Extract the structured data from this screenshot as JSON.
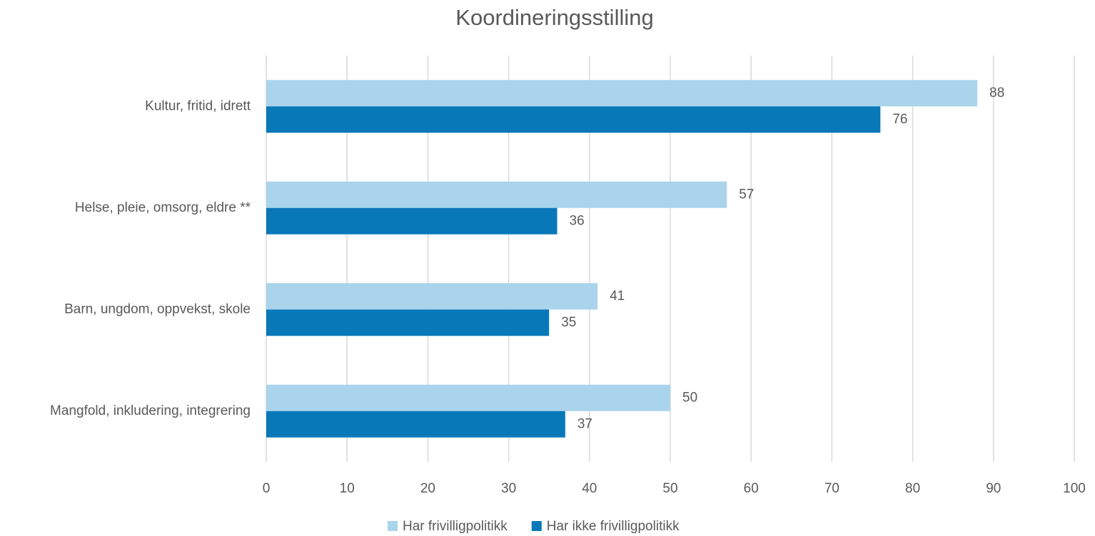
{
  "chart_data": {
    "type": "bar",
    "orientation": "horizontal",
    "title": "Koordineringsstilling",
    "categories": [
      "Kultur, fritid, idrett",
      "Helse, pleie, omsorg, eldre **",
      "Barn, ungdom, oppvekst, skole",
      "Mangfold, inkludering, integrering"
    ],
    "series": [
      {
        "name": "Har frivilligpolitikk",
        "color": "#a9d4ec",
        "values": [
          88,
          57,
          41,
          50
        ]
      },
      {
        "name": "Har ikke frivilligpolitikk",
        "color": "#0878b9",
        "values": [
          76,
          36,
          35,
          37
        ]
      }
    ],
    "xlim": [
      0,
      100
    ],
    "xticks": [
      0,
      10,
      20,
      30,
      40,
      50,
      60,
      70,
      80,
      90,
      100
    ],
    "grid": true,
    "legend": "bottom",
    "data_labels": true
  }
}
